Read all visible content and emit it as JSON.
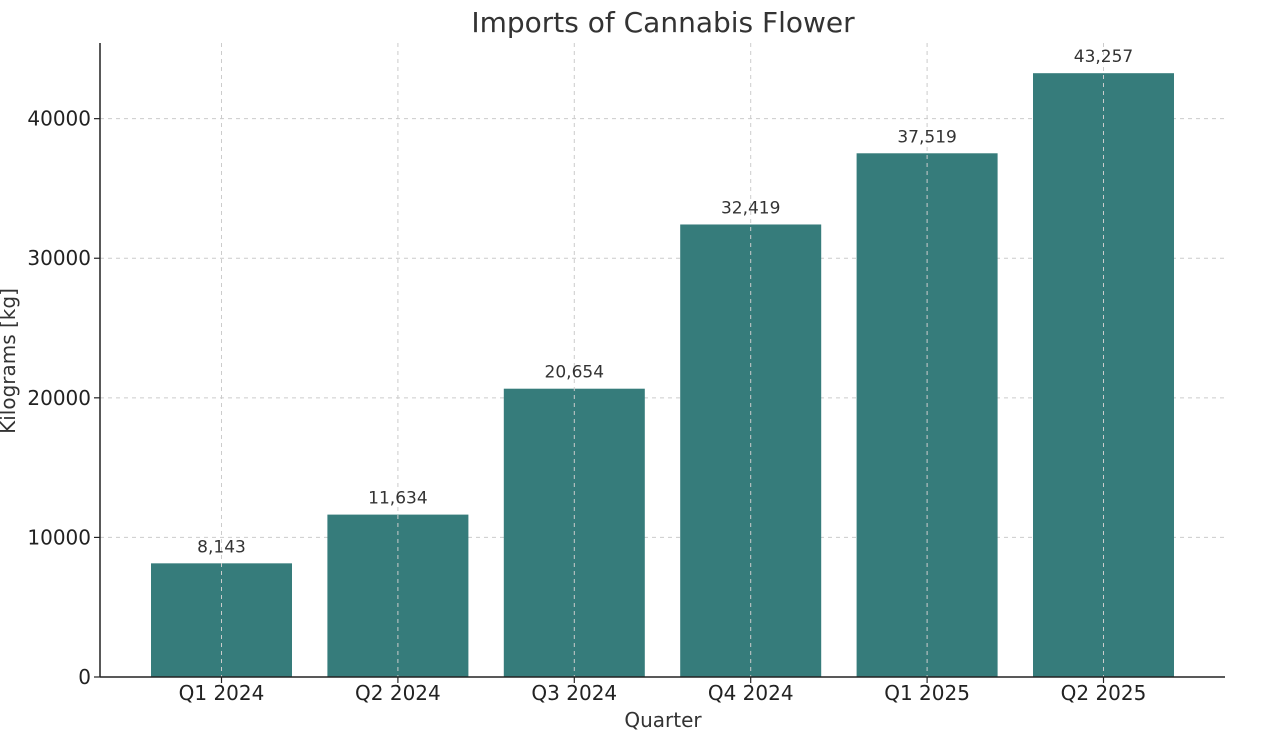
{
  "chart_data": {
    "type": "bar",
    "title": "Imports of Cannabis Flower",
    "xlabel": "Quarter",
    "ylabel": "Kilograms [kg]",
    "categories": [
      "Q1 2024",
      "Q2 2024",
      "Q3 2024",
      "Q4 2024",
      "Q1 2025",
      "Q2 2025"
    ],
    "values": [
      8143,
      11634,
      20654,
      32419,
      37519,
      43257
    ],
    "data_labels": [
      "8,143",
      "11,634",
      "20,654",
      "32,419",
      "37,519",
      "43,257"
    ],
    "y_ticks": [
      0,
      10000,
      20000,
      30000,
      40000
    ],
    "ylim": [
      0,
      45420
    ],
    "grid": true,
    "bar_color": "#367c7b"
  }
}
